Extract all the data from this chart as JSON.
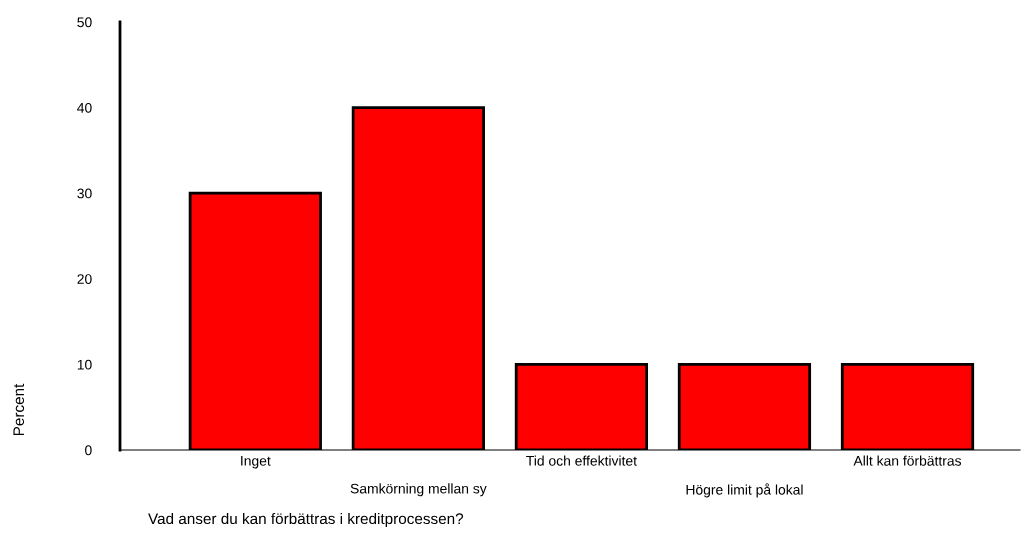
{
  "chart_data": {
    "type": "bar",
    "xlabel": "Vad anser du kan förbättras i kreditprocessen?",
    "ylabel": "Percent",
    "categories": [
      "Inget",
      "Samkörning mellan sy",
      "Tid och effektivitet",
      "Högre limit på lokal",
      "Allt kan förbättras"
    ],
    "values": [
      30,
      40,
      10,
      10,
      10
    ],
    "color": "#ff0000",
    "ylim": [
      0,
      50
    ],
    "yticks": [
      0,
      10,
      20,
      30,
      40,
      50
    ],
    "grid": false,
    "legend": false
  }
}
